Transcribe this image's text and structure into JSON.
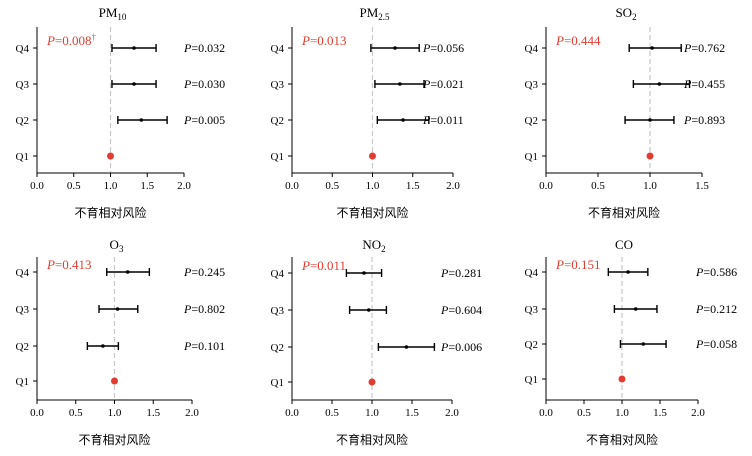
{
  "chart_data": [
    {
      "type": "forest",
      "title_main": "PM",
      "title_sub": "10",
      "xlabel": "不育相对风险",
      "xlim": [
        0,
        2
      ],
      "xticks": [
        "0.0",
        "0.5",
        "1.0",
        "1.5",
        "2.0"
      ],
      "reference_line": 1,
      "categories": [
        "Q4",
        "Q3",
        "Q2",
        "Q1"
      ],
      "estimate": [
        1.32,
        1.32,
        1.42,
        1.0
      ],
      "lower": [
        1.02,
        1.02,
        1.1,
        1.0
      ],
      "upper": [
        1.62,
        1.62,
        1.77,
        1.0
      ],
      "p_values": [
        "=0.032",
        "=0.030",
        "=0.005",
        ""
      ],
      "p_trend": "=0.008",
      "p_trend_mark": "†",
      "p_letter": "P",
      "trend_color": "#e03c31",
      "ref_point_color": "#e03c31"
    },
    {
      "type": "forest",
      "title_main": "PM",
      "title_sub": "2.5",
      "xlabel": "不育相对风险",
      "xlim": [
        0,
        2
      ],
      "xticks": [
        "0.0",
        "0.5",
        "1.0",
        "1.5",
        "2.0"
      ],
      "reference_line": 1,
      "categories": [
        "Q4",
        "Q3",
        "Q2",
        "Q1"
      ],
      "estimate": [
        1.28,
        1.34,
        1.38,
        1.0
      ],
      "lower": [
        0.98,
        1.03,
        1.06,
        1.0
      ],
      "upper": [
        1.58,
        1.64,
        1.7,
        1.0
      ],
      "p_values": [
        "=0.056",
        "=0.021",
        "=0.011",
        ""
      ],
      "p_trend": "=0.013",
      "p_trend_mark": "",
      "p_letter": "P",
      "trend_color": "#e03c31",
      "ref_point_color": "#e03c31"
    },
    {
      "type": "forest",
      "title_main": "SO",
      "title_sub": "2",
      "xlabel": "不育相对风险",
      "xlim": [
        0,
        1.5
      ],
      "xticks": [
        "0.0",
        "0.5",
        "1.0",
        "1.5"
      ],
      "reference_line": 1,
      "categories": [
        "Q4",
        "Q3",
        "Q2",
        "Q1"
      ],
      "estimate": [
        1.02,
        1.09,
        1.0,
        1.0
      ],
      "lower": [
        0.8,
        0.84,
        0.76,
        1.0
      ],
      "upper": [
        1.3,
        1.38,
        1.23,
        1.0
      ],
      "p_values": [
        "=0.762",
        "=0.455",
        "=0.893",
        ""
      ],
      "p_trend": "=0.444",
      "p_trend_mark": "",
      "p_letter": "P",
      "trend_color": "#e03c31",
      "ref_point_color": "#e03c31"
    },
    {
      "type": "forest",
      "title_main": "O",
      "title_sub": "3",
      "xlabel": "不育相对风险",
      "xlim": [
        0,
        2
      ],
      "xticks": [
        "0.0",
        "0.5",
        "1.0",
        "1.5",
        "2.0"
      ],
      "reference_line": 1,
      "categories": [
        "Q4",
        "Q3",
        "Q2",
        "Q1"
      ],
      "estimate": [
        1.17,
        1.04,
        0.85,
        1.0
      ],
      "lower": [
        0.9,
        0.8,
        0.65,
        1.0
      ],
      "upper": [
        1.45,
        1.3,
        1.05,
        1.0
      ],
      "p_values": [
        "=0.245",
        "=0.802",
        "=0.101",
        ""
      ],
      "p_trend": "=0.413",
      "p_trend_mark": "",
      "p_letter": "P",
      "trend_color": "#e03c31",
      "ref_point_color": "#e03c31"
    },
    {
      "type": "forest",
      "title_main": "NO",
      "title_sub": "2",
      "xlabel": "不育相对风险",
      "xlim": [
        0,
        2
      ],
      "xticks": [
        "0.0",
        "0.5",
        "1.0",
        "1.5",
        "2.0"
      ],
      "reference_line": 1,
      "categories": [
        "Q4",
        "Q3",
        "Q2",
        "Q1"
      ],
      "estimate": [
        0.9,
        0.96,
        1.43,
        1.0
      ],
      "lower": [
        0.68,
        0.72,
        1.08,
        1.0
      ],
      "upper": [
        1.12,
        1.18,
        1.78,
        1.0
      ],
      "p_values": [
        "=0.281",
        "=0.604",
        "=0.006",
        ""
      ],
      "p_trend": "=0.011",
      "p_trend_mark": "",
      "p_letter": "P",
      "trend_color": "#e03c31",
      "ref_point_color": "#e03c31"
    },
    {
      "type": "forest",
      "title_main": "CO",
      "title_sub": "",
      "xlabel": "不育相对风险",
      "xlim": [
        0,
        2
      ],
      "xticks": [
        "0.0",
        "0.5",
        "1.0",
        "1.5",
        "2.0"
      ],
      "reference_line": 1,
      "categories": [
        "Q4",
        "Q3",
        "Q2",
        "Q1"
      ],
      "estimate": [
        1.08,
        1.18,
        1.28,
        1.0
      ],
      "lower": [
        0.82,
        0.9,
        0.98,
        1.0
      ],
      "upper": [
        1.34,
        1.46,
        1.58,
        1.0
      ],
      "p_values": [
        "=0.586",
        "=0.212",
        "=0.058",
        ""
      ],
      "p_trend": "=0.151",
      "p_trend_mark": "",
      "p_letter": "P",
      "trend_color": "#e03c31",
      "ref_point_color": "#e03c31"
    }
  ]
}
